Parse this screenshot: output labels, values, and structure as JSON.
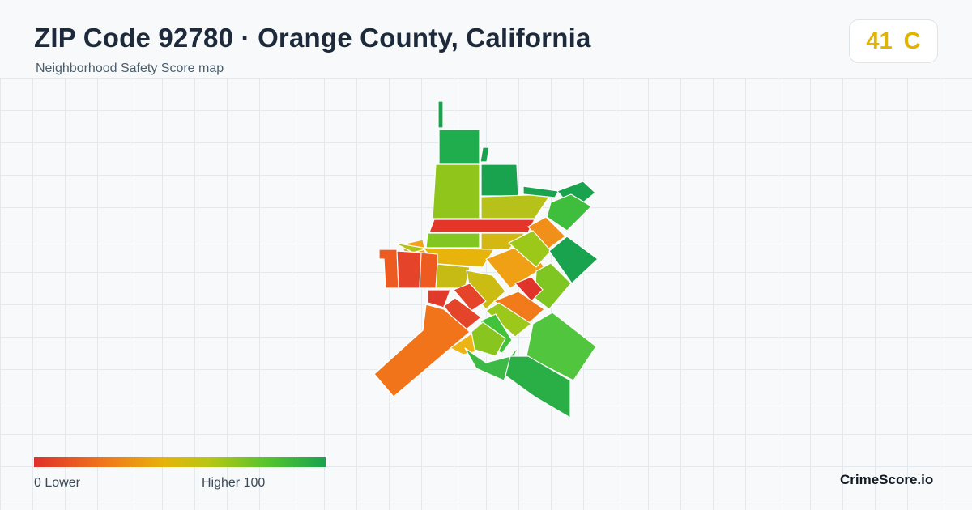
{
  "header": {
    "title": "ZIP Code 92780 · Orange County, California",
    "subtitle": "Neighborhood Safety Score map"
  },
  "score": {
    "value": "41",
    "grade": "C",
    "color": "#e0b400"
  },
  "legend": {
    "min_label": "0  Lower",
    "max_label": "Higher  100",
    "colors": [
      "#e0302a",
      "#f07a1a",
      "#e6b40a",
      "#b8c614",
      "#54c42e",
      "#1aa34e"
    ]
  },
  "brand": "CrimeScore.io",
  "map": {
    "region": "92780",
    "style": "choropleth",
    "grid": true
  }
}
